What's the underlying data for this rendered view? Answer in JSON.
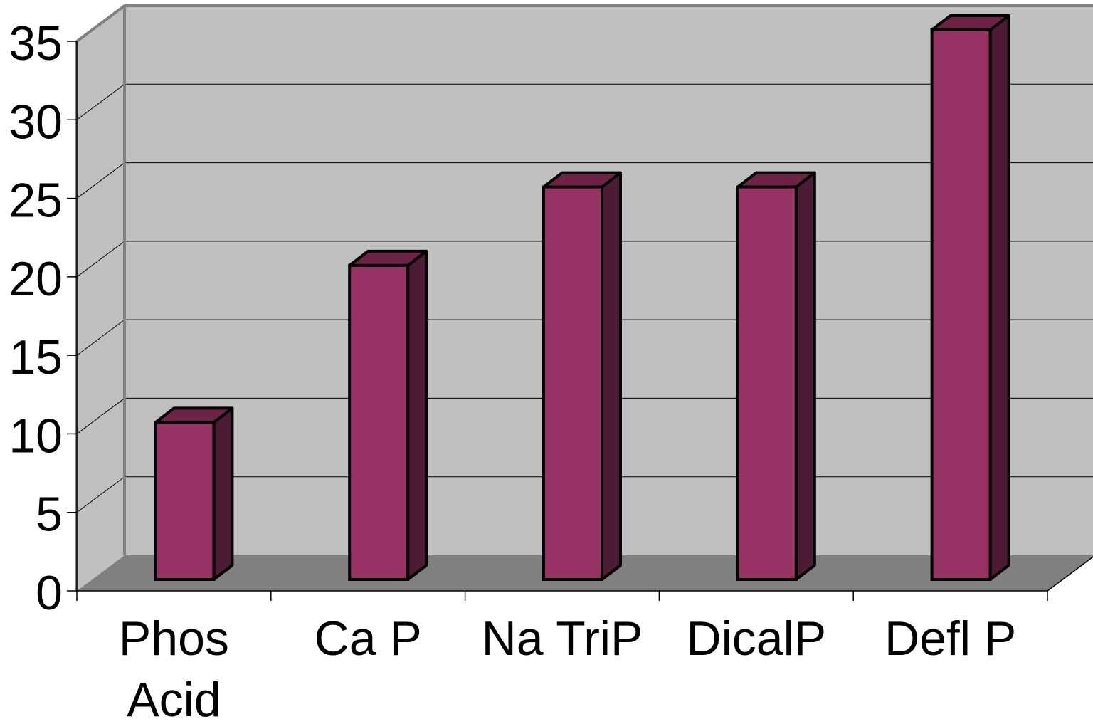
{
  "chart_data": {
    "type": "bar",
    "title": "",
    "xlabel": "",
    "ylabel": "",
    "categories": [
      "Phos Acid",
      "Ca P",
      "Na TriP",
      "DicalP",
      "Defl P"
    ],
    "values": [
      10,
      20,
      25,
      25,
      35
    ],
    "ylim": [
      0,
      35
    ],
    "yticks": [
      0,
      5,
      10,
      15,
      20,
      25,
      30,
      35
    ],
    "grid": true,
    "legend": "none",
    "style": "3d-column"
  },
  "colors": {
    "bar_front": "#963264",
    "bar_top": "#6e2248",
    "bar_side": "#4e1b36",
    "back_wall": "#c0c0c0",
    "side_wall": "#c0c0c0",
    "floor": "#808080",
    "wall_edge": "#808080",
    "gridline": "#000000"
  }
}
